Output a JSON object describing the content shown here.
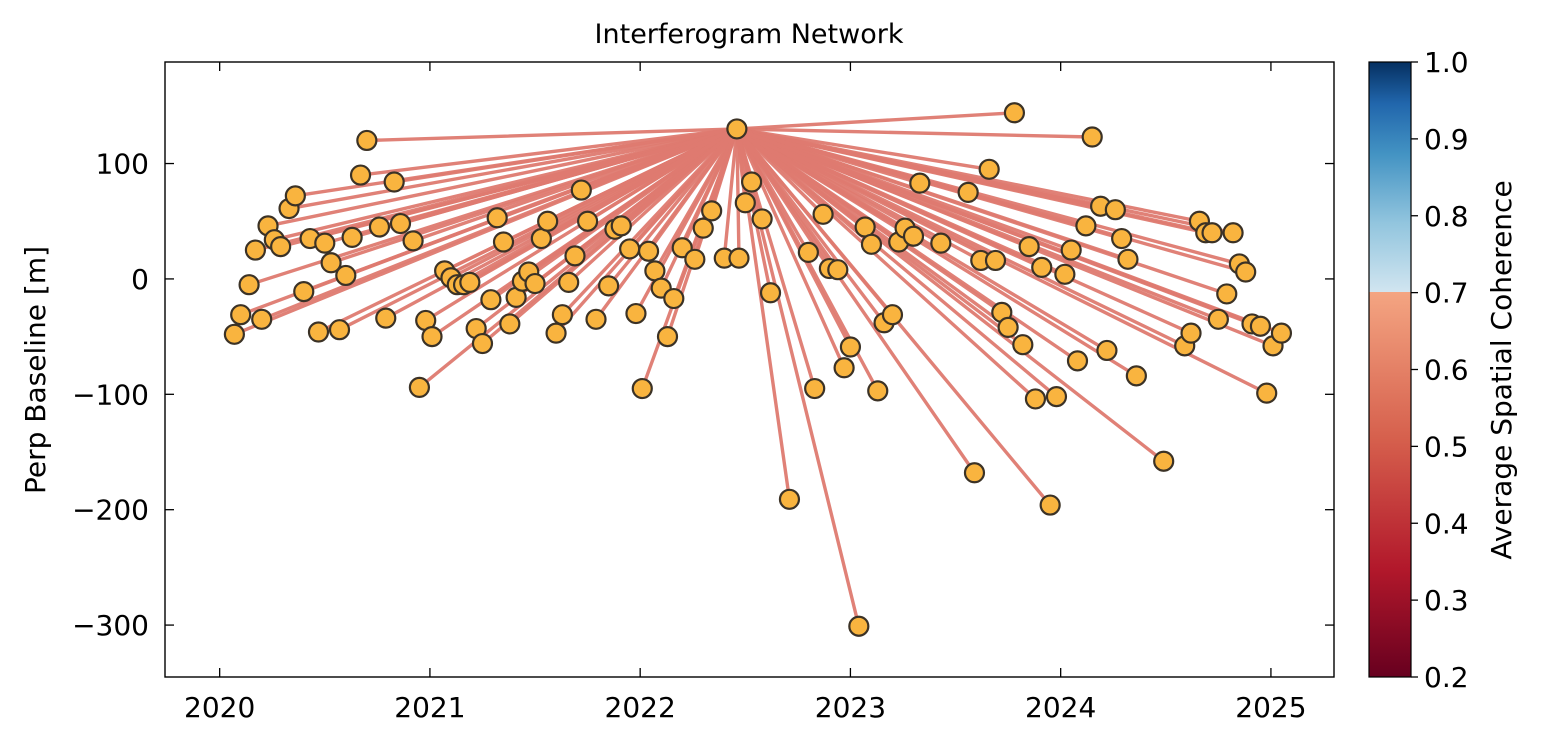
{
  "chart_data": {
    "type": "scatter",
    "title": "Interferogram Network",
    "xlabel": "",
    "ylabel": "Perp Baseline [m]",
    "xlim": [
      2019.74,
      2025.3
    ],
    "ylim": [
      -345,
      188
    ],
    "xticks": [
      "2020",
      "2021",
      "2022",
      "2023",
      "2024",
      "2025"
    ],
    "yticks": [
      100,
      0,
      -100,
      -200,
      -300
    ],
    "ytick_labels": [
      "100",
      "0",
      "−100",
      "−200",
      "−300"
    ],
    "grid": false,
    "reference": {
      "x": 2022.46,
      "y": 130
    },
    "edge_color": "#de7a70",
    "marker_face": "#f9b43f",
    "marker_edge": "#3b3226",
    "acquisitions": [
      {
        "x": 2020.07,
        "y": -48
      },
      {
        "x": 2020.1,
        "y": -31
      },
      {
        "x": 2020.14,
        "y": -5
      },
      {
        "x": 2020.17,
        "y": 25
      },
      {
        "x": 2020.2,
        "y": -35
      },
      {
        "x": 2020.23,
        "y": 46
      },
      {
        "x": 2020.26,
        "y": 34
      },
      {
        "x": 2020.29,
        "y": 28
      },
      {
        "x": 2020.33,
        "y": 61
      },
      {
        "x": 2020.36,
        "y": 72
      },
      {
        "x": 2020.4,
        "y": -11
      },
      {
        "x": 2020.43,
        "y": 35
      },
      {
        "x": 2020.47,
        "y": -46
      },
      {
        "x": 2020.5,
        "y": 31
      },
      {
        "x": 2020.53,
        "y": 14
      },
      {
        "x": 2020.57,
        "y": -44
      },
      {
        "x": 2020.6,
        "y": 3
      },
      {
        "x": 2020.63,
        "y": 36
      },
      {
        "x": 2020.67,
        "y": 90
      },
      {
        "x": 2020.7,
        "y": 120
      },
      {
        "x": 2020.76,
        "y": 45
      },
      {
        "x": 2020.79,
        "y": -34
      },
      {
        "x": 2020.83,
        "y": 84
      },
      {
        "x": 2020.86,
        "y": 48
      },
      {
        "x": 2020.92,
        "y": 33
      },
      {
        "x": 2020.95,
        "y": -94
      },
      {
        "x": 2020.98,
        "y": -36
      },
      {
        "x": 2021.01,
        "y": -50
      },
      {
        "x": 2021.07,
        "y": 7
      },
      {
        "x": 2021.1,
        "y": 1
      },
      {
        "x": 2021.13,
        "y": -5
      },
      {
        "x": 2021.16,
        "y": -5
      },
      {
        "x": 2021.19,
        "y": -3
      },
      {
        "x": 2021.22,
        "y": -43
      },
      {
        "x": 2021.25,
        "y": -56
      },
      {
        "x": 2021.29,
        "y": -18
      },
      {
        "x": 2021.32,
        "y": 53
      },
      {
        "x": 2021.35,
        "y": 32
      },
      {
        "x": 2021.38,
        "y": -39
      },
      {
        "x": 2021.41,
        "y": -16
      },
      {
        "x": 2021.44,
        "y": -2
      },
      {
        "x": 2021.47,
        "y": 6
      },
      {
        "x": 2021.5,
        "y": -4
      },
      {
        "x": 2021.53,
        "y": 35
      },
      {
        "x": 2021.56,
        "y": 50
      },
      {
        "x": 2021.6,
        "y": -47
      },
      {
        "x": 2021.63,
        "y": -31
      },
      {
        "x": 2021.66,
        "y": -3
      },
      {
        "x": 2021.69,
        "y": 20
      },
      {
        "x": 2021.72,
        "y": 77
      },
      {
        "x": 2021.75,
        "y": 50
      },
      {
        "x": 2021.79,
        "y": -35
      },
      {
        "x": 2021.85,
        "y": -6
      },
      {
        "x": 2021.88,
        "y": 43
      },
      {
        "x": 2021.91,
        "y": 46
      },
      {
        "x": 2021.95,
        "y": 26
      },
      {
        "x": 2021.98,
        "y": -30
      },
      {
        "x": 2022.01,
        "y": -95
      },
      {
        "x": 2022.04,
        "y": 24
      },
      {
        "x": 2022.07,
        "y": 7
      },
      {
        "x": 2022.1,
        "y": -8
      },
      {
        "x": 2022.13,
        "y": -50
      },
      {
        "x": 2022.16,
        "y": -17
      },
      {
        "x": 2022.2,
        "y": 27
      },
      {
        "x": 2022.26,
        "y": 17
      },
      {
        "x": 2022.3,
        "y": 44
      },
      {
        "x": 2022.34,
        "y": 59
      },
      {
        "x": 2022.4,
        "y": 18
      },
      {
        "x": 2022.46,
        "y": 130
      },
      {
        "x": 2022.47,
        "y": 18
      },
      {
        "x": 2022.5,
        "y": 66
      },
      {
        "x": 2022.53,
        "y": 84
      },
      {
        "x": 2022.58,
        "y": 52
      },
      {
        "x": 2022.62,
        "y": -12
      },
      {
        "x": 2022.71,
        "y": -191
      },
      {
        "x": 2022.8,
        "y": 23
      },
      {
        "x": 2022.83,
        "y": -95
      },
      {
        "x": 2022.87,
        "y": 56
      },
      {
        "x": 2022.9,
        "y": 9
      },
      {
        "x": 2022.94,
        "y": 8
      },
      {
        "x": 2022.97,
        "y": -77
      },
      {
        "x": 2023.0,
        "y": -59
      },
      {
        "x": 2023.04,
        "y": -301
      },
      {
        "x": 2023.07,
        "y": 45
      },
      {
        "x": 2023.1,
        "y": 30
      },
      {
        "x": 2023.13,
        "y": -97
      },
      {
        "x": 2023.16,
        "y": -38
      },
      {
        "x": 2023.2,
        "y": -31
      },
      {
        "x": 2023.23,
        "y": 32
      },
      {
        "x": 2023.26,
        "y": 44
      },
      {
        "x": 2023.3,
        "y": 37
      },
      {
        "x": 2023.33,
        "y": 83
      },
      {
        "x": 2023.43,
        "y": 31
      },
      {
        "x": 2023.56,
        "y": 75
      },
      {
        "x": 2023.59,
        "y": -168
      },
      {
        "x": 2023.62,
        "y": 16
      },
      {
        "x": 2023.66,
        "y": 95
      },
      {
        "x": 2023.69,
        "y": 16
      },
      {
        "x": 2023.72,
        "y": -29
      },
      {
        "x": 2023.75,
        "y": -42
      },
      {
        "x": 2023.82,
        "y": -57
      },
      {
        "x": 2023.85,
        "y": 28
      },
      {
        "x": 2023.88,
        "y": -104
      },
      {
        "x": 2023.91,
        "y": 10
      },
      {
        "x": 2023.95,
        "y": -196
      },
      {
        "x": 2023.98,
        "y": -102
      },
      {
        "x": 2024.02,
        "y": 4
      },
      {
        "x": 2024.05,
        "y": 25
      },
      {
        "x": 2024.08,
        "y": -71
      },
      {
        "x": 2024.12,
        "y": 46
      },
      {
        "x": 2024.15,
        "y": 123
      },
      {
        "x": 2024.19,
        "y": 63
      },
      {
        "x": 2024.22,
        "y": -62
      },
      {
        "x": 2024.26,
        "y": 60
      },
      {
        "x": 2024.29,
        "y": 35
      },
      {
        "x": 2024.32,
        "y": 17
      },
      {
        "x": 2024.36,
        "y": -84
      },
      {
        "x": 2024.49,
        "y": -158
      },
      {
        "x": 2024.59,
        "y": -58
      },
      {
        "x": 2024.62,
        "y": -47
      },
      {
        "x": 2024.66,
        "y": 50
      },
      {
        "x": 2024.69,
        "y": 40
      },
      {
        "x": 2024.72,
        "y": 40
      },
      {
        "x": 2024.75,
        "y": -35
      },
      {
        "x": 2024.79,
        "y": -13
      },
      {
        "x": 2024.82,
        "y": 40
      },
      {
        "x": 2024.85,
        "y": 13
      },
      {
        "x": 2024.88,
        "y": 6
      },
      {
        "x": 2024.91,
        "y": -39
      },
      {
        "x": 2024.95,
        "y": -41
      },
      {
        "x": 2024.98,
        "y": -99
      },
      {
        "x": 2025.01,
        "y": -58
      },
      {
        "x": 2025.05,
        "y": -47
      },
      {
        "x": 2023.78,
        "y": 144
      }
    ],
    "colorbar": {
      "label": "Average Spatial Coherence",
      "range": [
        0.2,
        1.0
      ],
      "ticks": [
        "1.0",
        "0.9",
        "0.8",
        "0.7",
        "0.6",
        "0.5",
        "0.4",
        "0.3",
        "0.2"
      ],
      "colormap": "RdBu",
      "colormap_stops": [
        "#67001f",
        "#b2182b",
        "#d6604d",
        "#f4a582",
        "#d1e5f0",
        "#92c5de",
        "#4393c3",
        "#2166ac",
        "#053061"
      ],
      "color_break": 0.7
    }
  }
}
